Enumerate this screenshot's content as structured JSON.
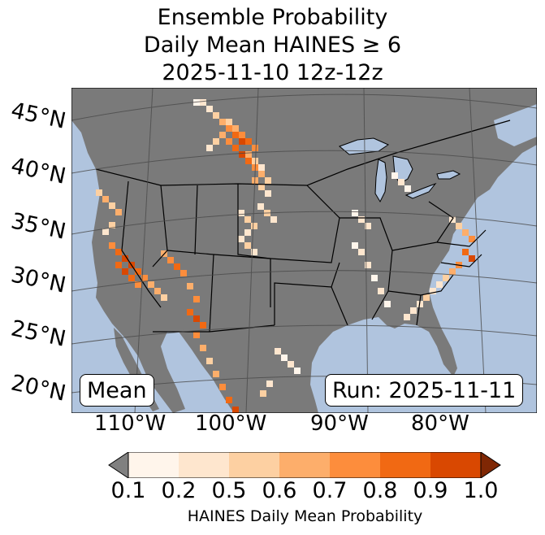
{
  "title": {
    "line1": "Ensemble Probability",
    "line2": "Daily Mean HAINES ≥ 6",
    "line3": "2025-11-10 12z-12z"
  },
  "map": {
    "lat_labels": [
      "45°N",
      "40°N",
      "35°N",
      "30°N",
      "25°N",
      "20°N"
    ],
    "lon_labels": [
      "110°W",
      "100°W",
      "90°W",
      "80°W"
    ],
    "box_left": "Mean",
    "box_right": "Run: 2025-11-11",
    "colors": {
      "ocean": "#b0c4de",
      "land": "#7a7a7a",
      "gridline": "#4a4a4a"
    }
  },
  "colorbar": {
    "label": "HAINES Daily Mean Probability",
    "ticks": [
      "0.1",
      "0.2",
      "0.5",
      "0.6",
      "0.7",
      "0.8",
      "0.9",
      "1.0"
    ],
    "under_color": "#808080",
    "over_color": "#7f2704",
    "colors": [
      "#fff5eb",
      "#fee6ce",
      "#fdd0a2",
      "#fdae6b",
      "#fd8d3c",
      "#f16913",
      "#d94801"
    ]
  }
}
